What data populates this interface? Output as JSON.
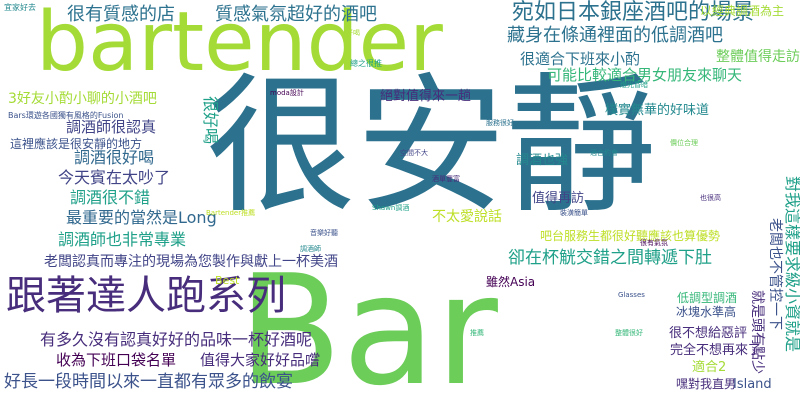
{
  "palette": {
    "green": "#6ccd59",
    "lime": "#a5db36",
    "teal": "#23898e",
    "dteal": "#2c728e",
    "blue": "#3b528b",
    "purple": "#472d7b",
    "dpurple": "#440154",
    "mint": "#35b779",
    "jade": "#1fa088",
    "yellow": "#bddf26",
    "slate": "#414487",
    "navy": "#31688e"
  },
  "words": [
    {
      "text": "Bar",
      "color": "green",
      "vertical": false
    },
    {
      "text": "很安靜",
      "color": "dteal",
      "vertical": false
    },
    {
      "text": "bartender",
      "color": "lime",
      "vertical": false
    },
    {
      "text": "跟著達人跑系列",
      "color": "purple",
      "vertical": false
    },
    {
      "text": "宛如日本銀座酒吧的場景",
      "color": "dteal",
      "vertical": false
    },
    {
      "text": "藏身在條通裡面的低調酒吧",
      "color": "dteal",
      "vertical": false
    },
    {
      "text": "很有質感的店",
      "color": "dteal",
      "vertical": false
    },
    {
      "text": "質感氣氛超好的酒吧",
      "color": "dteal",
      "vertical": false
    },
    {
      "text": "很適合下班來小酌",
      "color": "dteal",
      "vertical": false
    },
    {
      "text": "以經典調酒為主",
      "color": "lime",
      "vertical": false
    },
    {
      "text": "整體值得走訪",
      "color": "green",
      "vertical": false
    },
    {
      "text": "可能比較適合男女朋友來聊天",
      "color": "mint",
      "vertical": false
    },
    {
      "text": "3好友小酌小聊的小酒吧",
      "color": "lime",
      "vertical": false
    },
    {
      "text": "樸實無華的好味道",
      "color": "teal",
      "vertical": false
    },
    {
      "text": "調酒師很認真",
      "color": "slate",
      "vertical": false
    },
    {
      "text": "這裡應該是很安靜的地方",
      "color": "blue",
      "vertical": false
    },
    {
      "text": "調酒很好喝",
      "color": "navy",
      "vertical": false
    },
    {
      "text": "今天賓在太吵了",
      "color": "slate",
      "vertical": false
    },
    {
      "text": "調酒很不錯",
      "color": "jade",
      "vertical": false
    },
    {
      "text": "最重要的當然是Long",
      "color": "navy",
      "vertical": false
    },
    {
      "text": "調酒師也非常專業",
      "color": "jade",
      "vertical": false
    },
    {
      "text": "老闆認真而專注的現場為您製作與獻上一杯美酒",
      "color": "slate",
      "vertical": false
    },
    {
      "text": "有多久沒有認真好好的品味一杯好酒呢",
      "color": "purple",
      "vertical": false
    },
    {
      "text": "收為下班口袋名單",
      "color": "dpurple",
      "vertical": false
    },
    {
      "text": "值得大家好好品嚐",
      "color": "purple",
      "vertical": false
    },
    {
      "text": "好長一段時間以來一直都有眾多的飲宴",
      "color": "blue",
      "vertical": false
    },
    {
      "text": "卻在杯觥交錯之間轉遞下肚",
      "color": "jade",
      "vertical": false
    },
    {
      "text": "吧台服務生都很好聽應該也算優勢",
      "color": "yellow",
      "vertical": false
    },
    {
      "text": "不太愛說話",
      "color": "yellow",
      "vertical": false
    },
    {
      "text": "調酒也強",
      "color": "teal",
      "vertical": false
    },
    {
      "text": "值得再訪",
      "color": "slate",
      "vertical": false
    },
    {
      "text": "絕對值得來一趟",
      "color": "purple",
      "vertical": false
    },
    {
      "text": "冰塊水準高",
      "color": "blue",
      "vertical": false
    },
    {
      "text": "很不想給惡評",
      "color": "purple",
      "vertical": false
    },
    {
      "text": "完全不想再來了",
      "color": "purple",
      "vertical": false
    },
    {
      "text": "低調型調酒",
      "color": "mint",
      "vertical": false
    },
    {
      "text": "適合2",
      "color": "lime",
      "vertical": false
    },
    {
      "text": "嘿對我直男",
      "color": "purple",
      "vertical": false
    },
    {
      "text": "Island",
      "color": "blue",
      "vertical": false
    },
    {
      "text": "雖然Asia",
      "color": "dpurple",
      "vertical": false
    },
    {
      "text": "Best",
      "color": "yellow",
      "vertical": false
    },
    {
      "text": "很好喝",
      "color": "jade",
      "vertical": true
    },
    {
      "text": "老闆也不管控一下",
      "color": "blue",
      "vertical": true
    },
    {
      "text": "對我這樣要求級小資就是",
      "color": "jade",
      "vertical": true
    },
    {
      "text": "就是頭有點少",
      "color": "purple",
      "vertical": true
    },
    {
      "text": "Bars環遊各國獨有風格的Fusion",
      "color": "blue",
      "vertical": false
    },
    {
      "text": "宜家好去",
      "color": "teal",
      "vertical": false
    },
    {
      "text": "總之很推",
      "color": "jade",
      "vertical": false
    },
    {
      "text": "mod​a設計",
      "color": "dpurple",
      "vertical": false
    },
    {
      "text": "Shawn調酒",
      "color": "jade",
      "vertical": false
    },
    {
      "text": "Bartender推薦",
      "color": "yellow",
      "vertical": false
    },
    {
      "text": "Glasses",
      "color": "blue",
      "vertical": false
    },
    {
      "text": "也很高",
      "color": "purple",
      "vertical": false
    },
    {
      "text": "調酒師",
      "color": "teal",
      "vertical": false
    },
    {
      "text": "裝潢簡單",
      "color": "blue",
      "vertical": false
    },
    {
      "text": "整體很好",
      "color": "mint",
      "vertical": false
    },
    {
      "text": "空間不大",
      "color": "slate",
      "vertical": false
    },
    {
      "text": "服務很好",
      "color": "dteal",
      "vertical": false
    },
    {
      "text": "燈光昏暗",
      "color": "jade",
      "vertical": false
    },
    {
      "text": "酒單豐富",
      "color": "purple",
      "vertical": false
    },
    {
      "text": "價位合理",
      "color": "green",
      "vertical": false
    },
    {
      "text": "音樂好聽",
      "color": "blue",
      "vertical": false
    },
    {
      "text": "適合約會",
      "color": "teal",
      "vertical": false
    },
    {
      "text": "很有氣氛",
      "color": "dpurple",
      "vertical": false
    },
    {
      "text": "推薦",
      "color": "mint",
      "vertical": false
    },
    {
      "text": "好喝",
      "color": "lime",
      "vertical": false
    }
  ]
}
